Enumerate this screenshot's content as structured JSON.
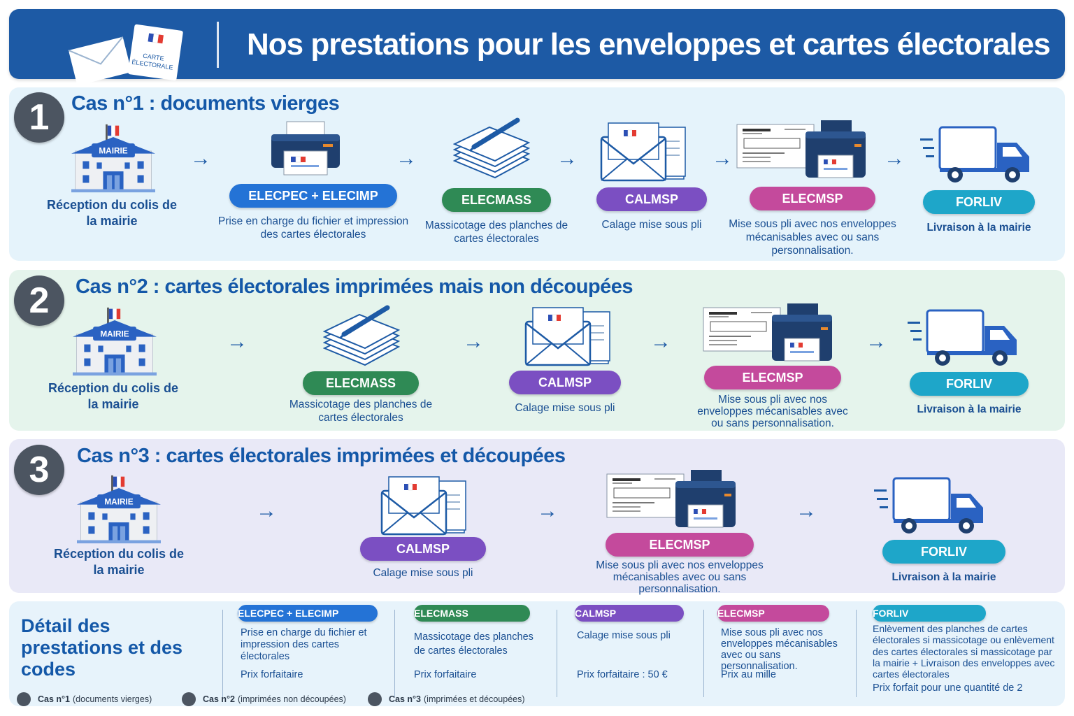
{
  "header": {
    "title": "Nos prestations pour les enveloppes et cartes électorales",
    "card_text": "CARTE ÉLECTORALE"
  },
  "mairie_sign": "MAIRIE",
  "cases": [
    {
      "number": "1",
      "title": "Cas n°1 : documents vierges",
      "start_label": "Réception du colis de la mairie",
      "steps": [
        {
          "code": "ELECPEC + ELECIMP",
          "desc": "Prise en charge du fichier et impression des cartes électorales"
        },
        {
          "code": "ELECMASS",
          "desc": "Massicotage des planches de cartes électorales"
        },
        {
          "code": "CALMSP",
          "desc": "Calage mise sous pli"
        },
        {
          "code": "ELECMSP",
          "desc": "Mise sous pli avec nos enveloppes mécanisables avec ou sans personnalisation."
        },
        {
          "code": "FORLIV",
          "desc": "Livraison à la mairie"
        }
      ]
    },
    {
      "number": "2",
      "title": "Cas n°2 : cartes électorales imprimées mais non découpées",
      "start_label": "Réception du colis de la mairie",
      "steps": [
        {
          "code": "ELECMASS",
          "desc": "Massicotage des planches de cartes électorales"
        },
        {
          "code": "CALMSP",
          "desc": "Calage mise sous pli"
        },
        {
          "code": "ELECMSP",
          "desc": "Mise sous pli avec nos enveloppes mécanisables avec ou sans personnalisation."
        },
        {
          "code": "FORLIV",
          "desc": "Livraison à la mairie"
        }
      ]
    },
    {
      "number": "3",
      "title": "Cas n°3 : cartes électorales imprimées et découpées",
      "start_label": "Réception du colis de la mairie",
      "steps": [
        {
          "code": "CALMSP",
          "desc": "Calage mise sous pli"
        },
        {
          "code": "ELECMSP",
          "desc": "Mise sous pli avec nos enveloppes mécanisables avec ou sans personnalisation."
        },
        {
          "code": "FORLIV",
          "desc": "Livraison à la mairie"
        }
      ]
    }
  ],
  "details": {
    "title": "Détail des prestations et des codes",
    "items": [
      {
        "code": "ELECPEC + ELECIMP",
        "desc": "Prise en charge du fichier et impression des cartes électorales",
        "price": "Prix forfaitaire"
      },
      {
        "code": "ELECMASS",
        "desc": "Massicotage des planches de cartes électorales",
        "price": "Prix forfaitaire"
      },
      {
        "code": "CALMSP",
        "desc": "Calage mise sous pli",
        "price": "Prix forfaitaire : 50 €"
      },
      {
        "code": "ELECMSP",
        "desc": "Mise sous pli avec nos enveloppes mécanisables avec ou sans personnalisation.",
        "price": "Prix au mille"
      },
      {
        "code": "FORLIV",
        "desc": "Enlèvement des planches de cartes électorales si massicotage ou enlèvement des cartes électorales si massicotage par la mairie + Livraison des enveloppes avec cartes électorales",
        "price": "Prix forfait pour une quantité de 2"
      }
    ]
  },
  "legend": [
    {
      "case": "Cas n°1",
      "note": "(documents vierges)"
    },
    {
      "case": "Cas n°2",
      "note": "(imprimées non découpées)"
    },
    {
      "case": "Cas n°3",
      "note": "(imprimées et découpées)"
    }
  ],
  "colors": {
    "header": "#1d5aa5",
    "blue": "#2473d6",
    "green": "#2f8a55",
    "purple": "#7b4fc2",
    "pink": "#c44a9c",
    "teal": "#1ea6c9",
    "badge": "#4c5561"
  }
}
